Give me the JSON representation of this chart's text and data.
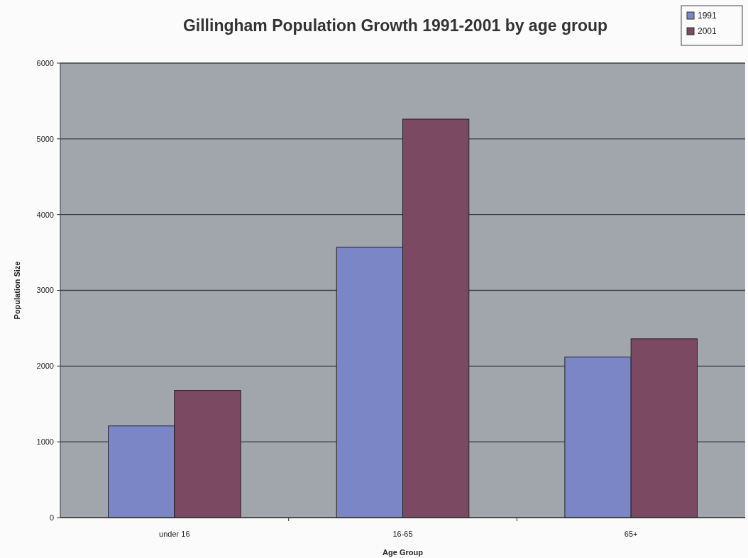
{
  "chart_data": {
    "type": "bar",
    "title": "Gillingham Population Growth 1991-2001 by age group",
    "xlabel": "Age Group",
    "ylabel": "Population Size",
    "categories": [
      "under 16",
      "16-65",
      "65+"
    ],
    "series": [
      {
        "name": "1991",
        "color": "#7b86c6",
        "values": [
          1210,
          3570,
          2120
        ]
      },
      {
        "name": "2001",
        "color": "#7b4a62",
        "values": [
          1680,
          5260,
          2360
        ]
      }
    ],
    "ylim": [
      0,
      6000
    ],
    "yticks": [
      0,
      1000,
      2000,
      3000,
      4000,
      5000,
      6000
    ],
    "grid": "y",
    "legend": "top right"
  }
}
